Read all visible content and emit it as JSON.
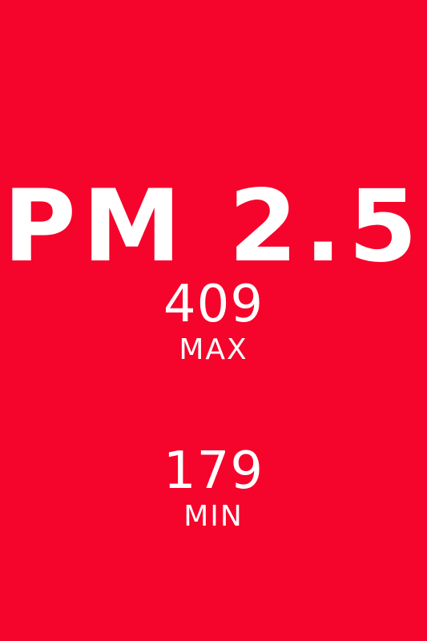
{
  "screen": {
    "background_color": "#f5042b",
    "text_color": "#ffffff",
    "title": "PM 2.5"
  },
  "stats": {
    "max": {
      "value": "409",
      "label": "MAX"
    },
    "min": {
      "value": "179",
      "label": "MIN"
    }
  }
}
